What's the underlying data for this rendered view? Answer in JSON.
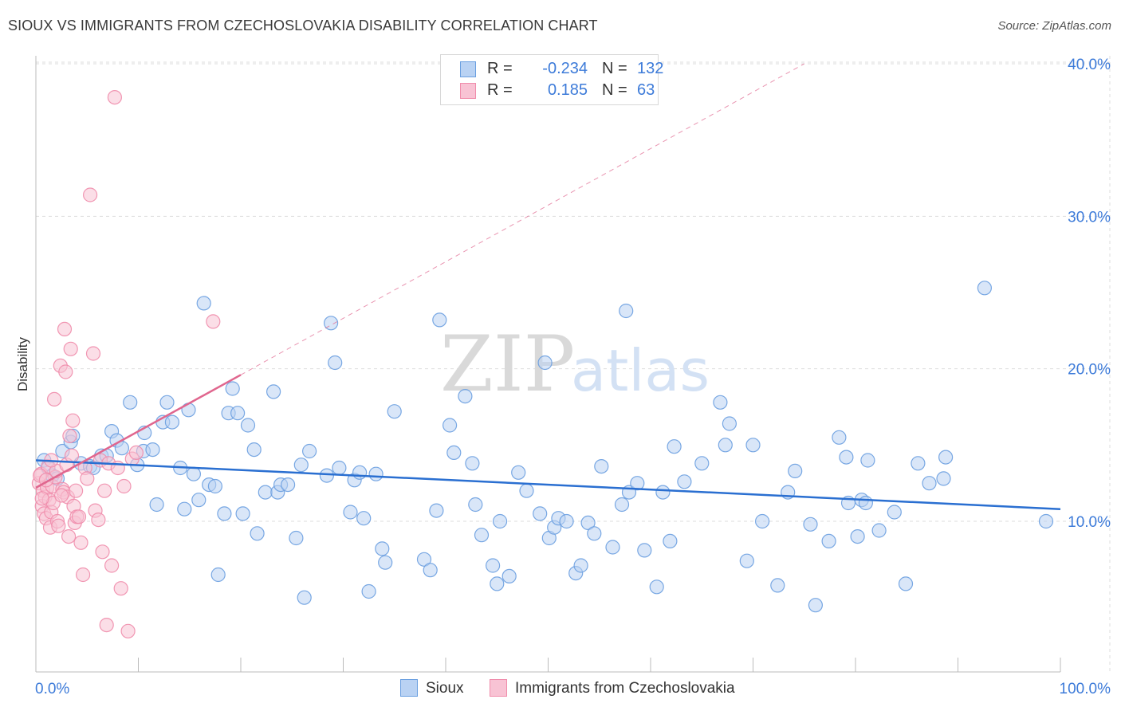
{
  "title": "SIOUX VS IMMIGRANTS FROM CZECHOSLOVAKIA DISABILITY CORRELATION CHART",
  "source": "Source: ZipAtlas.com",
  "watermark": {
    "zip": "ZIP",
    "atlas": "atlas"
  },
  "legend": {
    "rows": [
      {
        "r_label": "R =",
        "r_value": "-0.234",
        "n_label": "N =",
        "n_value": "132"
      },
      {
        "r_label": "R =",
        "r_value": "0.185",
        "n_label": "N =",
        "n_value": "63"
      }
    ]
  },
  "bottom_legend": {
    "sioux": "Sioux",
    "czech": "Immigrants from Czechoslovakia"
  },
  "colors": {
    "blue": "#6a9fe0",
    "blue_fill": "#b9d2f3",
    "blue_line": "#2a6fd1",
    "pink": "#f08cab",
    "pink_fill": "#f8c3d4",
    "pink_line": "#e0668e"
  },
  "chart_data": {
    "type": "scatter",
    "title": "SIOUX VS IMMIGRANTS FROM CZECHOSLOVAKIA DISABILITY CORRELATION CHART",
    "xlabel": "",
    "ylabel": "Disability",
    "xlim": [
      0,
      100
    ],
    "ylim": [
      0,
      41
    ],
    "x_tick_labels": [
      "0.0%",
      "100.0%"
    ],
    "y_ticks": [
      10,
      20,
      30,
      40
    ],
    "y_tick_labels": [
      "10.0%",
      "20.0%",
      "30.0%",
      "40.0%"
    ],
    "series": [
      {
        "name": "Sioux",
        "r": -0.234,
        "n": 132,
        "trend": {
          "x": [
            0,
            100
          ],
          "y": [
            14.0,
            10.8
          ]
        },
        "points": [
          [
            0.8,
            14.0
          ],
          [
            1.2,
            13.5
          ],
          [
            1.6,
            13.0
          ],
          [
            2.1,
            12.8
          ],
          [
            2.6,
            14.6
          ],
          [
            3.4,
            15.2
          ],
          [
            3.6,
            15.6
          ],
          [
            4.4,
            13.8
          ],
          [
            5.3,
            13.6
          ],
          [
            5.6,
            13.5
          ],
          [
            6.4,
            14.3
          ],
          [
            6.9,
            14.3
          ],
          [
            7.4,
            15.9
          ],
          [
            7.9,
            15.3
          ],
          [
            8.4,
            14.8
          ],
          [
            9.2,
            17.8
          ],
          [
            9.9,
            13.7
          ],
          [
            10.6,
            15.8
          ],
          [
            10.5,
            14.6
          ],
          [
            11.4,
            14.7
          ],
          [
            11.8,
            11.1
          ],
          [
            12.4,
            16.5
          ],
          [
            12.8,
            17.8
          ],
          [
            13.3,
            16.5
          ],
          [
            14.1,
            13.5
          ],
          [
            14.5,
            10.8
          ],
          [
            14.9,
            17.3
          ],
          [
            15.4,
            13.1
          ],
          [
            15.9,
            11.4
          ],
          [
            16.4,
            24.3
          ],
          [
            16.9,
            12.4
          ],
          [
            17.5,
            12.3
          ],
          [
            17.8,
            6.5
          ],
          [
            18.4,
            10.5
          ],
          [
            18.8,
            17.1
          ],
          [
            19.2,
            18.7
          ],
          [
            19.7,
            17.1
          ],
          [
            20.2,
            10.5
          ],
          [
            20.7,
            16.3
          ],
          [
            21.3,
            14.7
          ],
          [
            21.6,
            9.2
          ],
          [
            22.4,
            11.9
          ],
          [
            23.2,
            18.5
          ],
          [
            23.6,
            11.9
          ],
          [
            23.9,
            12.4
          ],
          [
            24.6,
            12.4
          ],
          [
            25.4,
            8.9
          ],
          [
            25.9,
            13.7
          ],
          [
            26.2,
            5.0
          ],
          [
            26.7,
            14.6
          ],
          [
            28.4,
            13.0
          ],
          [
            28.8,
            23.0
          ],
          [
            29.2,
            20.4
          ],
          [
            29.6,
            13.5
          ],
          [
            30.7,
            10.6
          ],
          [
            31.1,
            12.7
          ],
          [
            31.6,
            13.2
          ],
          [
            32.0,
            10.2
          ],
          [
            32.5,
            5.4
          ],
          [
            33.2,
            13.1
          ],
          [
            33.8,
            8.2
          ],
          [
            34.1,
            7.3
          ],
          [
            35.0,
            17.2
          ],
          [
            37.9,
            7.5
          ],
          [
            38.5,
            6.8
          ],
          [
            39.1,
            10.7
          ],
          [
            39.4,
            23.2
          ],
          [
            40.4,
            16.3
          ],
          [
            40.8,
            14.5
          ],
          [
            41.9,
            18.2
          ],
          [
            42.6,
            13.8
          ],
          [
            42.9,
            11.1
          ],
          [
            43.5,
            9.1
          ],
          [
            44.6,
            7.1
          ],
          [
            45.0,
            5.9
          ],
          [
            45.3,
            10.0
          ],
          [
            46.2,
            6.4
          ],
          [
            47.1,
            13.2
          ],
          [
            47.9,
            12.0
          ],
          [
            49.2,
            10.5
          ],
          [
            49.7,
            20.4
          ],
          [
            50.1,
            8.9
          ],
          [
            50.6,
            9.6
          ],
          [
            51.0,
            10.2
          ],
          [
            51.8,
            10.0
          ],
          [
            52.7,
            6.6
          ],
          [
            53.2,
            7.1
          ],
          [
            53.9,
            9.9
          ],
          [
            54.5,
            9.2
          ],
          [
            55.2,
            13.6
          ],
          [
            56.3,
            8.3
          ],
          [
            57.2,
            11.1
          ],
          [
            57.6,
            23.8
          ],
          [
            57.9,
            11.9
          ],
          [
            58.7,
            12.5
          ],
          [
            59.4,
            8.1
          ],
          [
            60.6,
            5.7
          ],
          [
            61.2,
            11.9
          ],
          [
            61.9,
            8.7
          ],
          [
            62.3,
            14.9
          ],
          [
            63.3,
            12.6
          ],
          [
            65.0,
            13.8
          ],
          [
            66.8,
            17.8
          ],
          [
            67.3,
            15.0
          ],
          [
            67.7,
            16.4
          ],
          [
            69.4,
            7.4
          ],
          [
            70.0,
            15.0
          ],
          [
            70.9,
            10.0
          ],
          [
            72.4,
            5.8
          ],
          [
            73.4,
            11.9
          ],
          [
            74.1,
            13.3
          ],
          [
            75.6,
            9.8
          ],
          [
            76.1,
            4.5
          ],
          [
            77.4,
            8.7
          ],
          [
            78.4,
            15.5
          ],
          [
            79.1,
            14.2
          ],
          [
            79.3,
            11.2
          ],
          [
            80.2,
            9.0
          ],
          [
            80.6,
            11.4
          ],
          [
            81.0,
            11.2
          ],
          [
            81.2,
            14.0
          ],
          [
            82.3,
            9.4
          ],
          [
            83.8,
            10.6
          ],
          [
            84.9,
            5.9
          ],
          [
            86.1,
            13.8
          ],
          [
            87.2,
            12.5
          ],
          [
            88.6,
            12.8
          ],
          [
            88.8,
            14.2
          ],
          [
            92.6,
            25.3
          ],
          [
            98.6,
            10.0
          ]
        ]
      },
      {
        "name": "Immigrants from Czechoslovakia",
        "r": 0.185,
        "n": 63,
        "trend": {
          "x": [
            0,
            20
          ],
          "y": [
            12.2,
            19.6
          ]
        },
        "trend_extension": {
          "x": [
            20,
            75
          ],
          "y": [
            19.6,
            40.0
          ]
        },
        "points": [
          [
            0.3,
            12.5
          ],
          [
            0.5,
            13.1
          ],
          [
            0.6,
            11.0
          ],
          [
            0.7,
            12.0
          ],
          [
            0.8,
            10.5
          ],
          [
            0.9,
            11.6
          ],
          [
            1.0,
            10.2
          ],
          [
            1.1,
            12.2
          ],
          [
            1.2,
            13.6
          ],
          [
            1.3,
            11.4
          ],
          [
            1.4,
            9.6
          ],
          [
            1.5,
            10.6
          ],
          [
            1.6,
            12.3
          ],
          [
            1.7,
            11.2
          ],
          [
            1.8,
            18.0
          ],
          [
            1.9,
            12.9
          ],
          [
            2.0,
            13.3
          ],
          [
            2.1,
            10.0
          ],
          [
            2.2,
            9.7
          ],
          [
            2.4,
            20.2
          ],
          [
            2.6,
            12.1
          ],
          [
            2.7,
            11.9
          ],
          [
            2.8,
            22.6
          ],
          [
            2.9,
            19.8
          ],
          [
            3.0,
            13.7
          ],
          [
            3.1,
            11.6
          ],
          [
            3.2,
            9.0
          ],
          [
            3.3,
            15.6
          ],
          [
            3.4,
            21.3
          ],
          [
            3.5,
            14.3
          ],
          [
            3.6,
            16.6
          ],
          [
            3.7,
            11.0
          ],
          [
            3.8,
            9.9
          ],
          [
            3.9,
            12.0
          ],
          [
            4.0,
            10.3
          ],
          [
            4.2,
            10.3
          ],
          [
            4.4,
            8.6
          ],
          [
            4.6,
            6.5
          ],
          [
            4.8,
            13.5
          ],
          [
            5.0,
            12.8
          ],
          [
            5.3,
            31.4
          ],
          [
            5.6,
            21.0
          ],
          [
            5.8,
            10.7
          ],
          [
            6.1,
            10.1
          ],
          [
            6.3,
            14.0
          ],
          [
            6.5,
            8.0
          ],
          [
            6.7,
            12.0
          ],
          [
            6.9,
            3.2
          ],
          [
            7.1,
            13.8
          ],
          [
            7.4,
            7.1
          ],
          [
            7.7,
            37.8
          ],
          [
            8.0,
            13.5
          ],
          [
            8.3,
            5.6
          ],
          [
            8.6,
            12.3
          ],
          [
            9.0,
            2.8
          ],
          [
            9.4,
            14.1
          ],
          [
            9.8,
            14.5
          ],
          [
            17.3,
            23.1
          ],
          [
            0.4,
            13.0
          ],
          [
            0.6,
            11.5
          ],
          [
            1.0,
            12.7
          ],
          [
            1.5,
            14.0
          ],
          [
            2.5,
            11.7
          ]
        ]
      }
    ],
    "legend_position": "top-center"
  }
}
